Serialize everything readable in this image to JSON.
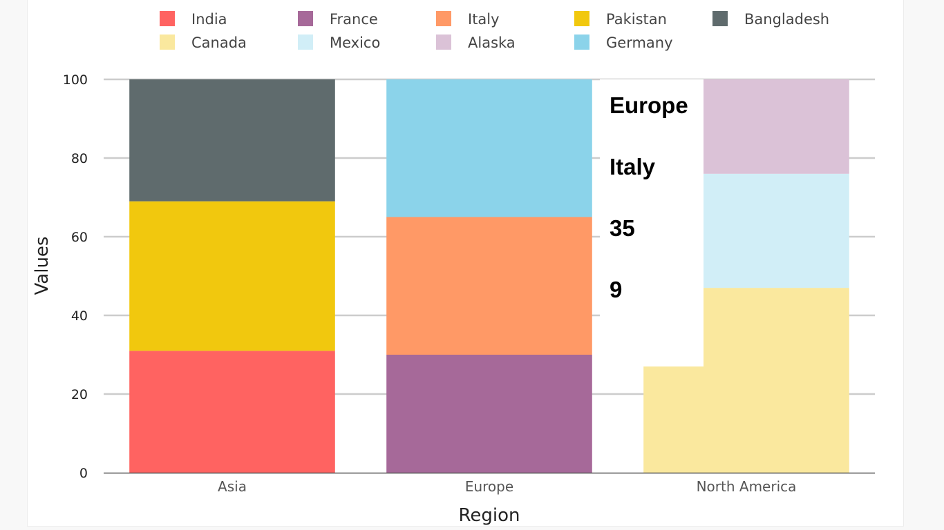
{
  "chart_data": {
    "type": "bar",
    "stacked": true,
    "categories": [
      "Asia",
      "Europe",
      "North America"
    ],
    "series": [
      {
        "name": "India",
        "color": "#ff6361",
        "values": [
          31,
          null,
          null
        ]
      },
      {
        "name": "Pakistan",
        "color": "#f1c80e",
        "values": [
          38,
          null,
          null
        ]
      },
      {
        "name": "Bangladesh",
        "color": "#5f6b6d",
        "values": [
          31,
          null,
          null
        ]
      },
      {
        "name": "France",
        "color": "#a66999",
        "values": [
          null,
          30,
          null
        ]
      },
      {
        "name": "Italy",
        "color": "#ff9966",
        "values": [
          null,
          35,
          null
        ]
      },
      {
        "name": "Germany",
        "color": "#8bd3ea",
        "values": [
          null,
          35,
          null
        ]
      },
      {
        "name": "Canada",
        "color": "#fae89e",
        "values": [
          null,
          null,
          47
        ]
      },
      {
        "name": "Mexico",
        "color": "#d1eef7",
        "values": [
          null,
          null,
          29
        ]
      },
      {
        "name": "Alaska",
        "color": "#dbc2d7",
        "values": [
          null,
          null,
          24
        ]
      }
    ],
    "legend_order": [
      "India",
      "France",
      "Italy",
      "Pakistan",
      "Bangladesh",
      "Canada",
      "Mexico",
      "Alaska",
      "Germany"
    ],
    "legend_placement": "top",
    "xlabel": "Region",
    "ylabel": "Values",
    "ylim": [
      0,
      100
    ],
    "yticks": [
      0,
      20,
      40,
      60,
      80,
      100
    ],
    "grid": true,
    "annotation": {
      "lines": [
        "Europe",
        "Italy",
        "35",
        "9"
      ],
      "overlay_value": 27
    }
  }
}
